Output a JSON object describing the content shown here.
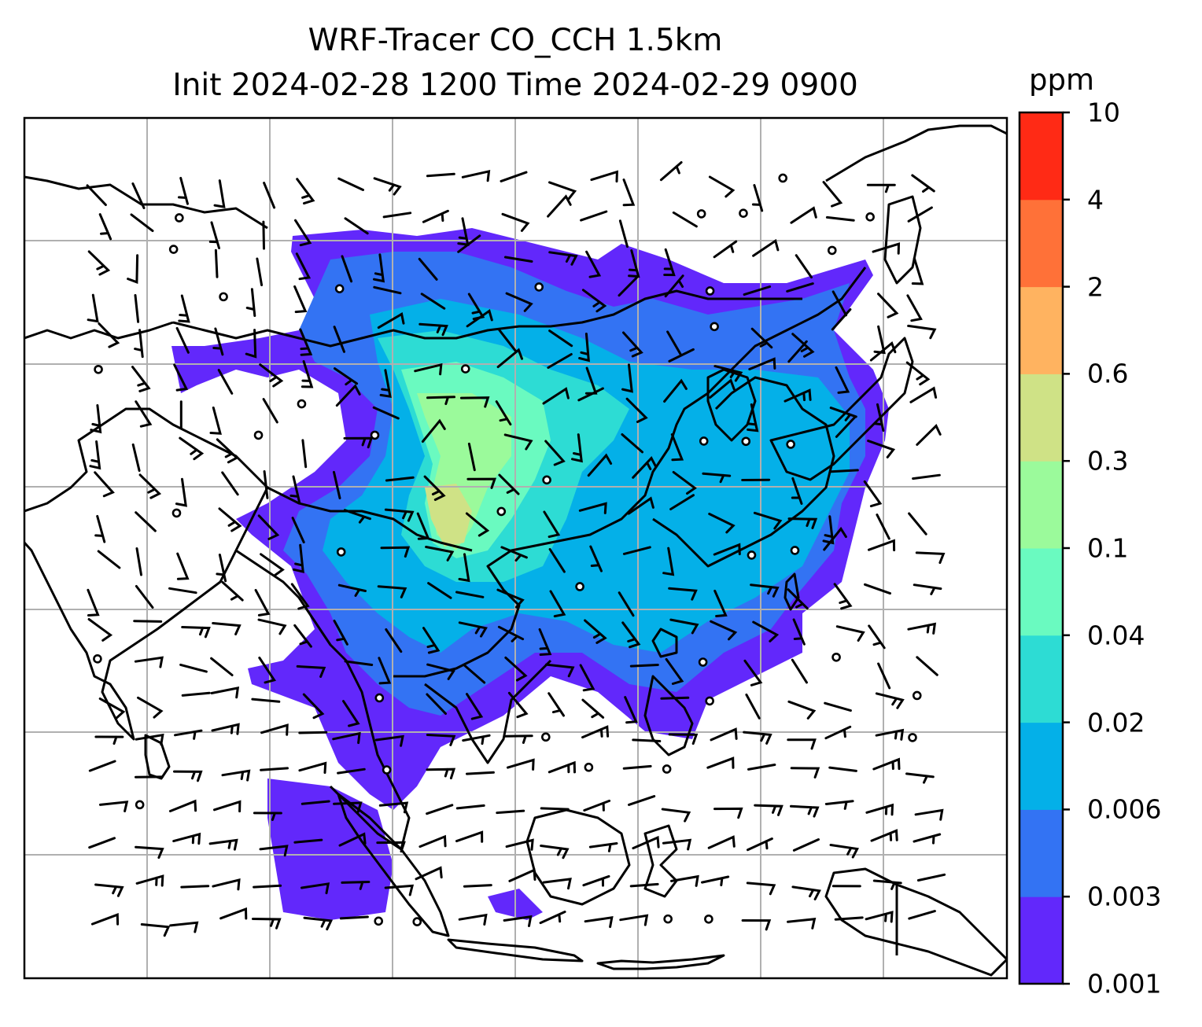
{
  "title": {
    "line1": "WRF-Tracer CO_CCH 1.5km",
    "line2": "Init 2024-02-28 1200 Time 2024-02-29 0900"
  },
  "colorbar": {
    "unit": "ppm",
    "levels": [
      "0.001",
      "0.003",
      "0.006",
      "0.02",
      "0.04",
      "0.1",
      "0.3",
      "0.6",
      "2",
      "4",
      "10"
    ],
    "colors": [
      "#6228fb",
      "#3373f3",
      "#04b0e8",
      "#2ddcd4",
      "#6afac0",
      "#9bfa9b",
      "#cfe286",
      "#ffb360",
      "#ff7138",
      "#ff2a15"
    ]
  },
  "map": {
    "features": [
      "coastlines",
      "country-borders",
      "gridlines",
      "wind-barbs",
      "calm-circles",
      "co-tracer-filled-contours"
    ],
    "gridline_color": "#b0b0b0"
  }
}
